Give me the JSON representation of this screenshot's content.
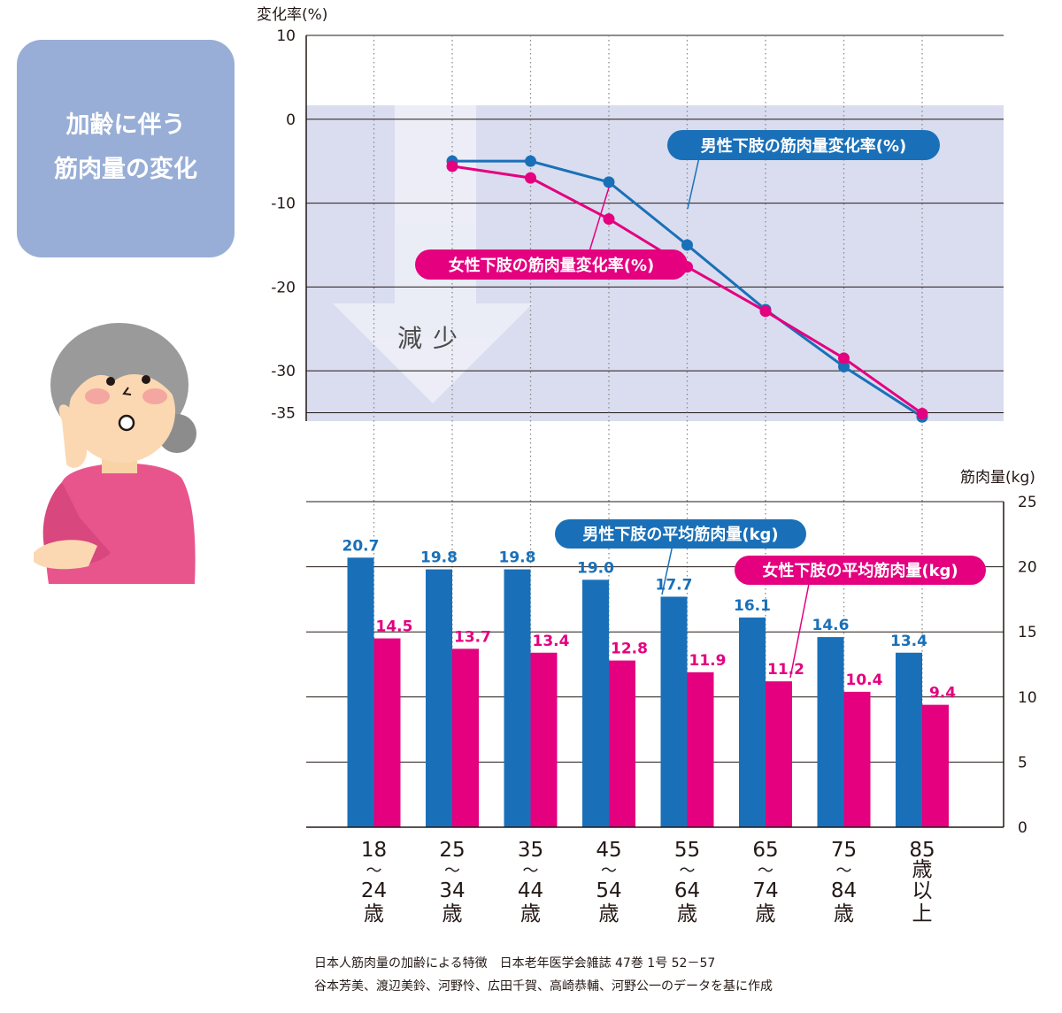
{
  "title": {
    "line1": "加齢に伴う",
    "line2": "筋肉量の変化"
  },
  "chart_data": [
    {
      "type": "line",
      "ylabel": "変化率(%)",
      "ylim": [
        -36,
        10
      ],
      "yticks": [
        10,
        0,
        -10,
        -20,
        -30,
        -35
      ],
      "categories": [
        "18～24歳",
        "25～34歳",
        "35～44歳",
        "45～54歳",
        "55～64歳",
        "65～74歳",
        "75～84歳",
        "85歳以上"
      ],
      "shaded_region_label": "減少",
      "series": [
        {
          "name": "男性下肢の筋肉量変化率(%)",
          "color": "#1a70b8",
          "values": [
            null,
            -5.0,
            -5.0,
            -7.5,
            -15.0,
            -22.7,
            -29.5,
            -35.5
          ]
        },
        {
          "name": "女性下肢の筋肉量変化率(%)",
          "color": "#e4007f",
          "values": [
            null,
            -5.6,
            -7.0,
            -11.9,
            -17.6,
            -22.9,
            -28.5,
            -35.1
          ]
        }
      ],
      "grid": true
    },
    {
      "type": "bar",
      "ylabel": "筋肉量(kg)",
      "ylim": [
        0,
        25
      ],
      "yticks": [
        0,
        5,
        10,
        15,
        20,
        25
      ],
      "categories": [
        [
          "18",
          "～",
          "24",
          "歳"
        ],
        [
          "25",
          "～",
          "34",
          "歳"
        ],
        [
          "35",
          "～",
          "44",
          "歳"
        ],
        [
          "45",
          "～",
          "54",
          "歳"
        ],
        [
          "55",
          "～",
          "64",
          "歳"
        ],
        [
          "65",
          "～",
          "74",
          "歳"
        ],
        [
          "75",
          "～",
          "84",
          "歳"
        ],
        [
          "85",
          "歳",
          "以",
          "上"
        ]
      ],
      "series": [
        {
          "name": "男性下肢の平均筋肉量(kg)",
          "color": "#1a70b8",
          "values": [
            20.7,
            19.8,
            19.8,
            19.0,
            17.7,
            16.1,
            14.6,
            13.4
          ],
          "labels": [
            "20.7",
            "19.8",
            "19.8",
            "19.0",
            "17.7",
            "16.1",
            "14.6",
            "13.4"
          ]
        },
        {
          "name": "女性下肢の平均筋肉量(kg)",
          "color": "#e4007f",
          "values": [
            14.5,
            13.7,
            13.4,
            12.8,
            11.9,
            11.2,
            10.4,
            9.4
          ],
          "labels": [
            "14.5",
            "13.7",
            "13.4",
            "12.8",
            "11.9",
            "11.2",
            "10.4",
            "9.4"
          ]
        }
      ],
      "grid": true
    }
  ],
  "footnote": {
    "line1": "日本人筋肉量の加齢による特徴　日本老年医学会雑誌 47巻 1号 52－57",
    "line2": "谷本芳美、渡辺美鈴、河野怜、広田千賀、高崎恭輔、河野公一のデータを基に作成"
  }
}
